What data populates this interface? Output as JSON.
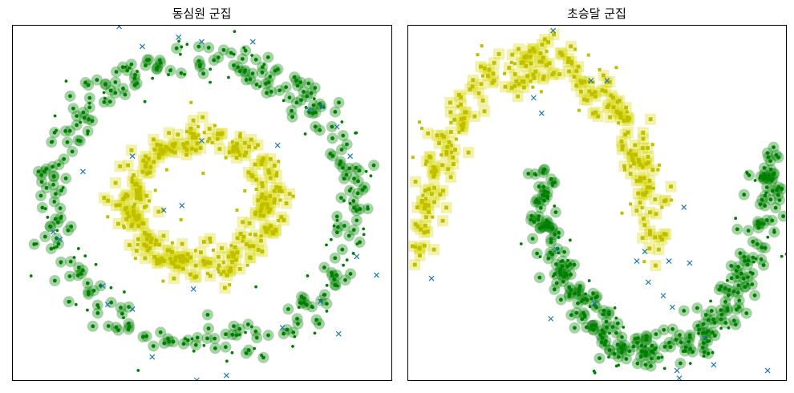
{
  "chart_data": [
    {
      "type": "scatter",
      "title": "동심원 군집",
      "xlabel": "",
      "ylabel": "",
      "xlim": [
        -1.15,
        1.15
      ],
      "ylim": [
        -1.15,
        1.15
      ],
      "grid": false,
      "legend": "none",
      "ticks": "none",
      "series": [
        {
          "marker": "circle",
          "core_color": "#008000",
          "halo_color": "#008000",
          "halo_opacity": 0.35,
          "shape": "ring",
          "count": 260,
          "radius": 0.92,
          "jitter": 0.055,
          "seed": 11,
          "x_samples": [
            0.0,
            0.65,
            0.92,
            0.65,
            0.0,
            -0.65,
            -0.92,
            -0.65
          ],
          "y_samples": [
            0.92,
            0.65,
            0.0,
            -0.65,
            -0.92,
            -0.65,
            0.0,
            0.65
          ]
        },
        {
          "marker": "circle",
          "color": "#008000",
          "role": "border",
          "shape": "ring",
          "count": 100,
          "radius": 0.92,
          "jitter": 0.09,
          "seed": 23
        },
        {
          "marker": "square",
          "core_color": "#bfbf00",
          "halo_color": "#d6d600",
          "halo_opacity": 0.32,
          "shape": "ring",
          "count": 260,
          "radius": 0.42,
          "jitter": 0.055,
          "seed": 37,
          "x_samples": [
            0.0,
            0.3,
            0.42,
            0.3,
            0.0,
            -0.3,
            -0.42,
            -0.3
          ],
          "y_samples": [
            0.42,
            0.3,
            0.0,
            -0.3,
            -0.42,
            -0.3,
            0.0,
            0.3
          ]
        },
        {
          "marker": "square",
          "color": "#bfbf00",
          "role": "border",
          "shape": "ring",
          "count": 60,
          "radius": 0.42,
          "jitter": 0.09,
          "seed": 41
        },
        {
          "marker": "x",
          "color": "#1f77b4",
          "role": "noise",
          "x": [
            -0.5,
            -0.14,
            0.0,
            0.31,
            0.46,
            -0.42,
            -0.72,
            -0.36,
            -0.23,
            0.73,
            0.9,
            0.82,
            1.17,
            -0.9,
            -0.86,
            -0.6,
            -0.42,
            -0.57,
            -0.05,
            0.65,
            0.49,
            1.06,
            0.83,
            0.94,
            0.72,
            0.15,
            -0.3,
            -0.03,
            -0.12,
            0.0
          ],
          "y": [
            1.14,
            1.07,
            1.04,
            1.04,
            0.37,
            0.3,
            0.2,
            1.01,
            -0.05,
            0.62,
            0.3,
            0.49,
            0.04,
            -0.19,
            -0.24,
            -0.54,
            -0.69,
            -0.66,
            -0.56,
            0.6,
            -0.81,
            -0.47,
            -0.85,
            -0.35,
            -0.64,
            -1.12,
            -1.0,
            -1.15,
            -0.02,
            0.4
          ]
        }
      ]
    },
    {
      "type": "scatter",
      "title": "초승달 군집",
      "xlabel": "",
      "ylabel": "",
      "xlim": [
        -1.15,
        2.15
      ],
      "ylim": [
        -0.65,
        1.2
      ],
      "grid": false,
      "legend": "none",
      "ticks": "none",
      "series": [
        {
          "marker": "square",
          "core_color": "#bfbf00",
          "halo_color": "#d6d600",
          "halo_opacity": 0.32,
          "shape": "upper-moon",
          "count": 240,
          "jitter": 0.065,
          "seed": 53,
          "x_samples": [
            -1.0,
            -0.71,
            0.0,
            0.71,
            1.0
          ],
          "y_samples": [
            0.0,
            0.71,
            1.0,
            0.71,
            0.0
          ]
        },
        {
          "marker": "square",
          "color": "#bfbf00",
          "role": "border",
          "shape": "upper-moon",
          "count": 50,
          "jitter": 0.1,
          "seed": 59
        },
        {
          "marker": "circle",
          "core_color": "#008000",
          "halo_color": "#008000",
          "halo_opacity": 0.35,
          "shape": "lower-moon",
          "count": 280,
          "jitter": 0.065,
          "seed": 61,
          "x_samples": [
            0.0,
            0.29,
            1.0,
            1.71,
            2.0
          ],
          "y_samples": [
            0.5,
            -0.21,
            -0.5,
            -0.21,
            0.5
          ]
        },
        {
          "marker": "circle",
          "color": "#008000",
          "role": "border",
          "shape": "lower-moon",
          "count": 60,
          "jitter": 0.1,
          "seed": 67
        },
        {
          "marker": "x",
          "color": "#1f77b4",
          "role": "noise",
          "x": [
            0.12,
            0.45,
            0.59,
            0.02,
            -0.05,
            1.26,
            1.31,
            0.85,
            1.99,
            0.95,
            0.92,
            1.13,
            1.08,
            1.16,
            1.44,
            -0.94,
            0.15,
            0.48,
            0.1,
            1.52,
            1.2,
            1.22
          ],
          "y": [
            1.17,
            0.91,
            0.91,
            0.74,
            0.82,
            0.25,
            -0.04,
            -0.03,
            -0.6,
            -0.14,
            0.02,
            -0.03,
            -0.21,
            -0.27,
            -0.43,
            -0.12,
            0.03,
            -0.25,
            -0.33,
            -0.57,
            -0.6,
            -0.64
          ]
        }
      ]
    }
  ]
}
